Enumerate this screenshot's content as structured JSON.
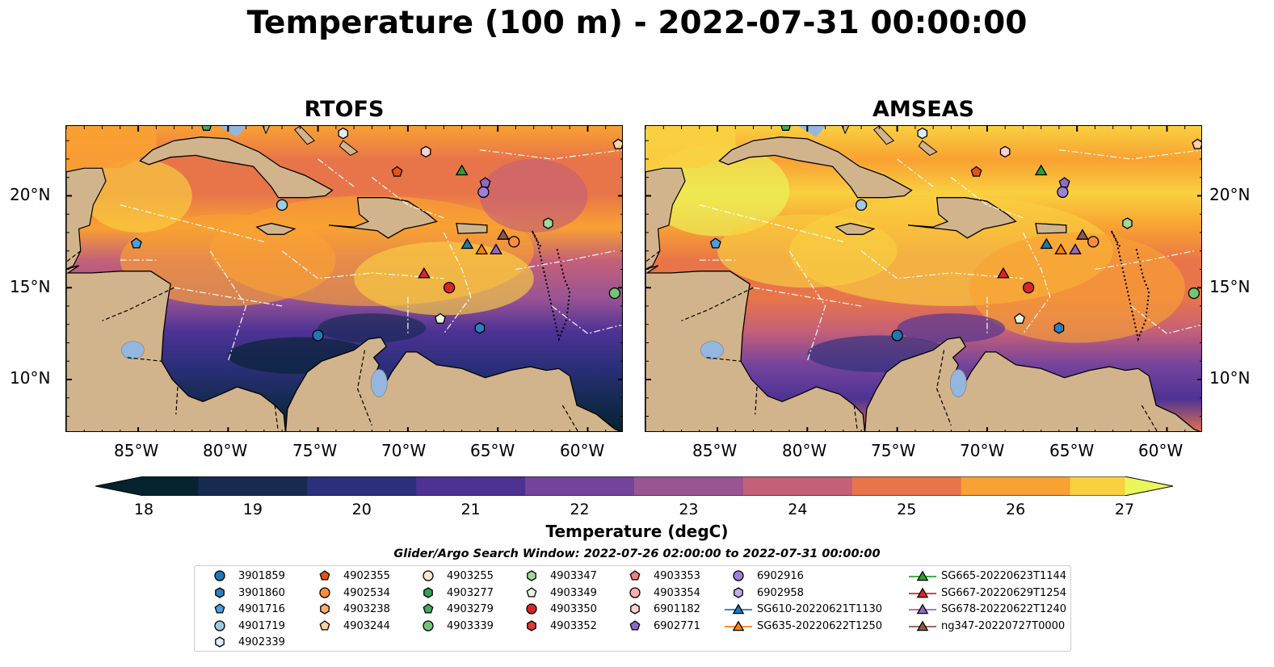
{
  "title": "Temperature (100 m) - 2022-07-31 00:00:00",
  "panels": [
    {
      "title": "RTOFS"
    },
    {
      "title": "AMSEAS"
    }
  ],
  "axes": {
    "lon_ticks": [
      "85°W",
      "80°W",
      "75°W",
      "70°W",
      "65°W",
      "60°W"
    ],
    "lat_ticks": [
      "20°N",
      "15°N",
      "10°N"
    ]
  },
  "colorbar": {
    "label": "Temperature (degC)",
    "ticks": [
      "18",
      "19",
      "20",
      "21",
      "22",
      "23",
      "24",
      "25",
      "26",
      "27"
    ],
    "range": [
      18,
      27
    ],
    "colors": [
      "#05222f",
      "#162a52",
      "#2c2f7c",
      "#4d3294",
      "#74449c",
      "#9a5494",
      "#c46078",
      "#e87549",
      "#f9a132",
      "#f9d040",
      "#eaf65a"
    ]
  },
  "legend": {
    "title": "Glider/Argo Search Window: 2022-07-26 02:00:00 to 2022-07-31 00:00:00",
    "items": [
      {
        "label": "3901859",
        "shape": "circle",
        "color": "#1f77b4"
      },
      {
        "label": "3901860",
        "shape": "hexagon",
        "color": "#2f7fbf"
      },
      {
        "label": "4901716",
        "shape": "pentagon",
        "color": "#4a9fe0"
      },
      {
        "label": "4901719",
        "shape": "circle",
        "color": "#9ecae1"
      },
      {
        "label": "4902339",
        "shape": "hexagon",
        "color": "#deebf7"
      },
      {
        "label": "4902355",
        "shape": "pentagon",
        "color": "#e6550d"
      },
      {
        "label": "4902534",
        "shape": "circle",
        "color": "#fd8d3c"
      },
      {
        "label": "4903238",
        "shape": "hexagon",
        "color": "#fdae6b"
      },
      {
        "label": "4903244",
        "shape": "pentagon",
        "color": "#fdd0a2"
      },
      {
        "label": "4903255",
        "shape": "circle",
        "color": "#fee6ce"
      },
      {
        "label": "4903277",
        "shape": "hexagon",
        "color": "#31a354"
      },
      {
        "label": "4903279",
        "shape": "pentagon",
        "color": "#41ab5d"
      },
      {
        "label": "4903339",
        "shape": "circle",
        "color": "#74c476"
      },
      {
        "label": "4903347",
        "shape": "hexagon",
        "color": "#a1d99b"
      },
      {
        "label": "4903349",
        "shape": "pentagon",
        "color": "#e5f5e0"
      },
      {
        "label": "4903350",
        "shape": "circle",
        "color": "#d62728"
      },
      {
        "label": "4903352",
        "shape": "hexagon",
        "color": "#e0373a"
      },
      {
        "label": "4903353",
        "shape": "pentagon",
        "color": "#f07f80"
      },
      {
        "label": "4903354",
        "shape": "circle",
        "color": "#fcaeae"
      },
      {
        "label": "6901182",
        "shape": "hexagon",
        "color": "#fdd0d0"
      },
      {
        "label": "6902771",
        "shape": "pentagon",
        "color": "#8c6bc8"
      },
      {
        "label": "6902916",
        "shape": "circle",
        "color": "#9e80d8"
      },
      {
        "label": "6902958",
        "shape": "hexagon",
        "color": "#c3aeed"
      },
      {
        "label": "SG610-20220621T1130",
        "shape": "triangle-line",
        "color": "#1f77b4"
      },
      {
        "label": "SG635-20220622T1250",
        "shape": "triangle-line",
        "color": "#ff7f0e"
      },
      {
        "label": "SG665-20220623T1144",
        "shape": "triangle-line",
        "color": "#2ca02c"
      },
      {
        "label": "SG667-20220629T1254",
        "shape": "triangle-line",
        "color": "#d62728"
      },
      {
        "label": "SG678-20220622T1240",
        "shape": "triangle-line",
        "color": "#9467bd"
      },
      {
        "label": "ng347-20220727T0000",
        "shape": "triangle-line",
        "color": "#8c564b"
      }
    ]
  },
  "markers": [
    {
      "id": "4903279",
      "lon": -81.2,
      "lat": 23.8
    },
    {
      "id": "4902339",
      "lon": -73.6,
      "lat": 23.4
    },
    {
      "id": "4903244",
      "lon": -58.3,
      "lat": 22.8
    },
    {
      "id": "6901182",
      "lon": -69.0,
      "lat": 22.4
    },
    {
      "id": "4902355",
      "lon": -70.6,
      "lat": 21.3
    },
    {
      "id": "SG665-20220623T1144",
      "lon": -67.0,
      "lat": 21.4
    },
    {
      "id": "6902771",
      "lon": -65.7,
      "lat": 20.7
    },
    {
      "id": "6902916",
      "lon": -65.8,
      "lat": 20.2
    },
    {
      "id": "4901719",
      "lon": -77.0,
      "lat": 19.5
    },
    {
      "id": "4903347",
      "lon": -62.2,
      "lat": 18.5
    },
    {
      "id": "4901716",
      "lon": -85.1,
      "lat": 17.4
    },
    {
      "id": "SG610-20220621T1130",
      "lon": -66.7,
      "lat": 17.4
    },
    {
      "id": "ng347-20220727T0000",
      "lon": -64.7,
      "lat": 17.9
    },
    {
      "id": "4902534",
      "lon": -64.1,
      "lat": 17.5
    },
    {
      "id": "SG635-20220622T1250",
      "lon": -65.9,
      "lat": 17.1
    },
    {
      "id": "SG678-20220622T1240",
      "lon": -65.1,
      "lat": 17.1
    },
    {
      "id": "SG667-20220629T1254",
      "lon": -69.1,
      "lat": 15.8
    },
    {
      "id": "4903350",
      "lon": -67.7,
      "lat": 15.0
    },
    {
      "id": "4903339",
      "lon": -58.5,
      "lat": 14.7
    },
    {
      "id": "4903349",
      "lon": -68.2,
      "lat": 13.3
    },
    {
      "id": "3901860",
      "lon": -66.0,
      "lat": 12.8
    },
    {
      "id": "3901859",
      "lon": -75.0,
      "lat": 12.4
    }
  ]
}
